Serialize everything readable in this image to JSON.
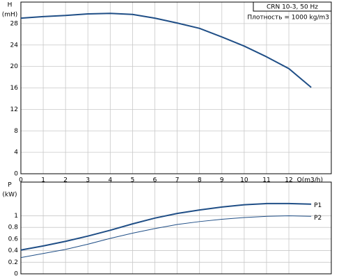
{
  "chart_data": [
    {
      "type": "line",
      "y_label": [
        "H",
        "(mH)"
      ],
      "x_label": "Q(m3/h)",
      "annotations": [
        "CRN 10-3, 50 Hz",
        "Плотность = 1000 kg/m3"
      ],
      "x": [
        0,
        1,
        2,
        3,
        4,
        5,
        6,
        7,
        8,
        9,
        10,
        11,
        12,
        13
      ],
      "xlim": [
        0,
        13.9
      ],
      "xticks": [
        0,
        1,
        2,
        3,
        4,
        5,
        6,
        7,
        8,
        9,
        10,
        11,
        12
      ],
      "ylim": [
        0,
        32
      ],
      "yticks": [
        0,
        4,
        8,
        12,
        16,
        20,
        24,
        28
      ],
      "grid": true,
      "series": [
        {
          "name": null,
          "color": "#1f4e86",
          "width": 2,
          "values": [
            29.0,
            29.3,
            29.5,
            29.8,
            29.9,
            29.7,
            29.0,
            28.1,
            27.1,
            25.5,
            23.8,
            21.8,
            19.6,
            16.1
          ]
        }
      ]
    },
    {
      "type": "line",
      "y_label": [
        "P",
        "(kW)"
      ],
      "x": [
        0,
        1,
        2,
        3,
        4,
        5,
        6,
        7,
        8,
        9,
        10,
        11,
        12,
        13
      ],
      "xlim": [
        0,
        13.9
      ],
      "xticks": [
        0,
        1,
        2,
        3,
        4,
        5,
        6,
        7,
        8,
        9,
        10,
        11,
        12
      ],
      "ylim": [
        0,
        1.58
      ],
      "yticks": [
        0,
        0.2,
        0.4,
        0.6,
        0.8,
        1
      ],
      "grid": true,
      "series": [
        {
          "name": "P1",
          "color": "#1f4e86",
          "width": 2,
          "values": [
            0.41,
            0.48,
            0.56,
            0.65,
            0.75,
            0.86,
            0.96,
            1.04,
            1.1,
            1.15,
            1.19,
            1.21,
            1.21,
            1.2
          ]
        },
        {
          "name": "P2",
          "color": "#1f4e86",
          "width": 1,
          "values": [
            0.28,
            0.35,
            0.42,
            0.51,
            0.61,
            0.7,
            0.78,
            0.85,
            0.9,
            0.94,
            0.97,
            0.99,
            1.0,
            0.99
          ]
        }
      ]
    }
  ]
}
